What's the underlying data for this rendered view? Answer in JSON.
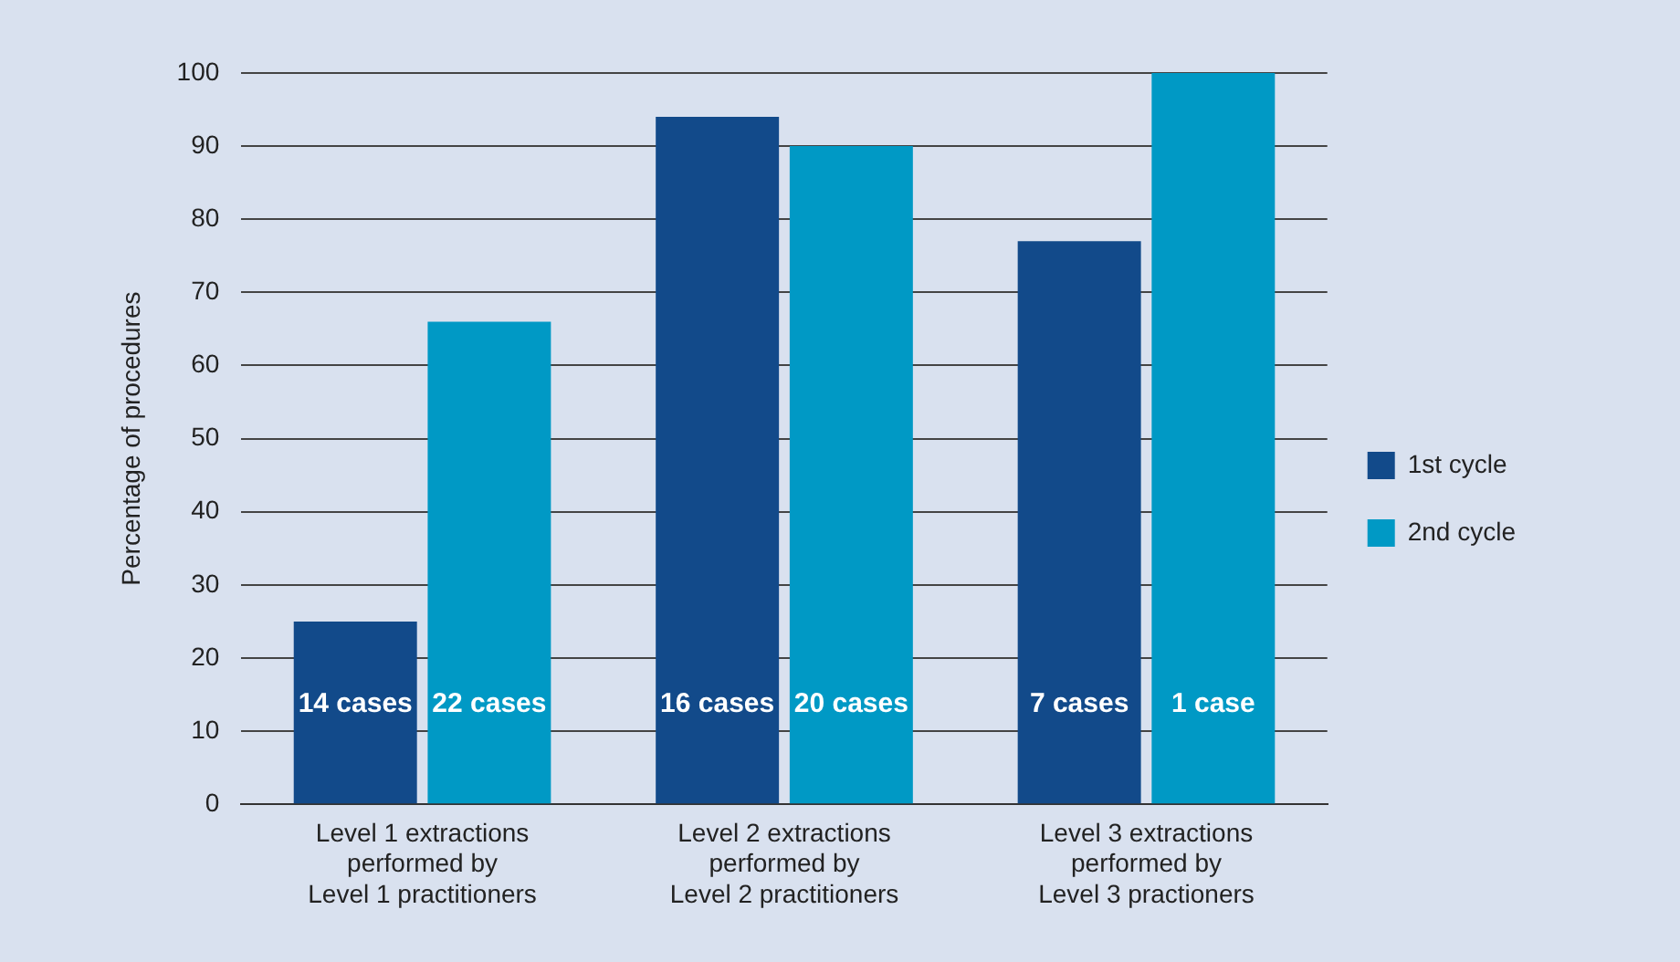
{
  "chart_data": {
    "type": "bar",
    "ylabel": "Percentage of procedures",
    "categories": [
      "Level 1 extractions\nperformed by\nLevel 1 practitioners",
      "Level 2 extractions\nperformed by\nLevel 2 practitioners",
      "Level 3 extractions\nperformed by\nLevel 3 practioners"
    ],
    "series": [
      {
        "name": "1st cycle",
        "color": "#124a8a",
        "values": [
          25,
          94,
          77
        ]
      },
      {
        "name": "2nd cycle",
        "color": "#0099c5",
        "values": [
          66,
          90,
          100
        ]
      }
    ],
    "annotations": [
      "14 cases",
      "22 cases",
      "16 cases",
      "20 cases",
      "7 cases",
      "1 case"
    ],
    "ylim": [
      0,
      100
    ],
    "yticks": [
      0,
      10,
      20,
      30,
      40,
      50,
      60,
      70,
      80,
      90,
      100
    ],
    "grid": "y",
    "legend": "right"
  }
}
